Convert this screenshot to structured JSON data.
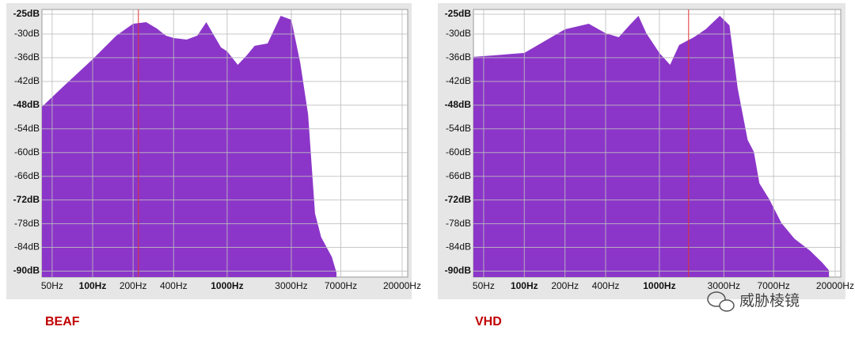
{
  "chart_data": [
    {
      "type": "area",
      "label": "BEAF",
      "color": "#8b36c9",
      "cursor": 219,
      "cursor_color": "#e03030",
      "log_x": true,
      "grid": true,
      "x": [
        42,
        60,
        100,
        150,
        200,
        250,
        300,
        350,
        400,
        500,
        600,
        700,
        800,
        900,
        1000,
        1200,
        1400,
        1600,
        2000,
        2500,
        3000,
        3500,
        4000,
        4500,
        5000,
        6000,
        6500
      ],
      "values": [
        -48.4,
        -43.4,
        -36.4,
        -30.4,
        -27.4,
        -27,
        -28.6,
        -30.4,
        -31,
        -31.4,
        -30.4,
        -27,
        -30.4,
        -33.4,
        -34.4,
        -37.8,
        -35.4,
        -33,
        -32.4,
        -25.4,
        -26.4,
        -37.4,
        -50.4,
        -75.4,
        -81.4,
        -86.4,
        -90.4
      ],
      "xlim": [
        42,
        22000
      ],
      "ylim": [
        -91.5,
        -23.8
      ],
      "xticks": [
        {
          "value": 50,
          "label": "50Hz"
        },
        {
          "value": 100,
          "label": "100Hz",
          "bold": true
        },
        {
          "value": 200,
          "label": "200Hz"
        },
        {
          "value": 400,
          "label": "400Hz"
        },
        {
          "value": 1000,
          "label": "1000Hz",
          "bold": true
        },
        {
          "value": 3000,
          "label": "3000Hz"
        },
        {
          "value": 7000,
          "label": "7000Hz"
        },
        {
          "value": 20000,
          "label": "20000Hz"
        }
      ],
      "yticks": [
        {
          "value": -25,
          "label": "-25dB",
          "bold": true
        },
        {
          "value": -30,
          "label": "-30dB"
        },
        {
          "value": -36,
          "label": "-36dB"
        },
        {
          "value": -42,
          "label": "-42dB"
        },
        {
          "value": -48,
          "label": "-48dB",
          "bold": true
        },
        {
          "value": -54,
          "label": "-54dB"
        },
        {
          "value": -60,
          "label": "-60dB"
        },
        {
          "value": -66,
          "label": "-66dB"
        },
        {
          "value": -72,
          "label": "-72dB",
          "bold": true
        },
        {
          "value": -78,
          "label": "-78dB"
        },
        {
          "value": -84,
          "label": "-84dB"
        },
        {
          "value": -90,
          "label": "-90dB",
          "bold": true
        }
      ]
    },
    {
      "type": "area",
      "label": "VHD",
      "color": "#8b36c9",
      "cursor": 1645,
      "cursor_color": "#e03030",
      "log_x": true,
      "grid": true,
      "x": [
        42,
        100,
        200,
        300,
        400,
        500,
        600,
        700,
        800,
        1000,
        1200,
        1400,
        1800,
        2200,
        2800,
        3300,
        3800,
        4500,
        5000,
        5500,
        6500,
        8000,
        10000,
        13000,
        16000,
        18000
      ],
      "values": [
        -35.8,
        -34.8,
        -28.8,
        -27.4,
        -29.8,
        -30.8,
        -27.8,
        -25.4,
        -29.8,
        -34.8,
        -37.8,
        -32.8,
        -30.8,
        -28.8,
        -25.4,
        -27.8,
        -43.8,
        -56.8,
        -59.8,
        -67.8,
        -71.8,
        -77.8,
        -81.8,
        -84.8,
        -87.8,
        -89.8
      ],
      "xlim": [
        42,
        22000
      ],
      "ylim": [
        -91.5,
        -23.8
      ],
      "xticks": [
        {
          "value": 50,
          "label": "50Hz"
        },
        {
          "value": 100,
          "label": "100Hz",
          "bold": true
        },
        {
          "value": 200,
          "label": "200Hz"
        },
        {
          "value": 400,
          "label": "400Hz"
        },
        {
          "value": 1000,
          "label": "1000Hz",
          "bold": true
        },
        {
          "value": 3000,
          "label": "3000Hz"
        },
        {
          "value": 7000,
          "label": "7000Hz"
        },
        {
          "value": 20000,
          "label": "20000Hz"
        }
      ],
      "yticks": [
        {
          "value": -25,
          "label": "-25dB",
          "bold": true
        },
        {
          "value": -30,
          "label": "-30dB"
        },
        {
          "value": -36,
          "label": "-36dB"
        },
        {
          "value": -42,
          "label": "-42dB"
        },
        {
          "value": -48,
          "label": "-48dB",
          "bold": true
        },
        {
          "value": -54,
          "label": "-54dB"
        },
        {
          "value": -60,
          "label": "-60dB"
        },
        {
          "value": -66,
          "label": "-66dB"
        },
        {
          "value": -72,
          "label": "-72dB",
          "bold": true
        },
        {
          "value": -78,
          "label": "-78dB"
        },
        {
          "value": -84,
          "label": "-84dB"
        },
        {
          "value": -90,
          "label": "-90dB",
          "bold": true
        }
      ]
    }
  ],
  "watermark": "威胁棱镜"
}
